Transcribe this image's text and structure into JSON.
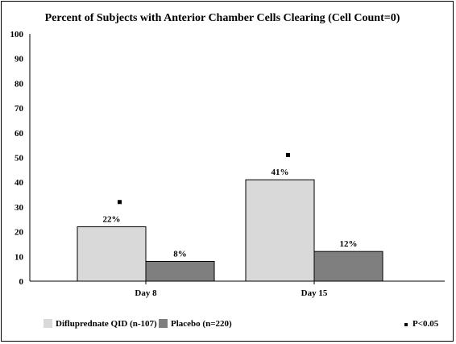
{
  "chart_data": {
    "type": "bar",
    "title": "Percent of Subjects with Anterior Chamber Cells Clearing (Cell Count=0)",
    "categories": [
      "Day  8",
      "Day  15"
    ],
    "series": [
      {
        "name": "Difluprednate  QID  (n-107)",
        "values": [
          22,
          41
        ],
        "labels": [
          "22%",
          "41%"
        ],
        "color": "#d9d9d9"
      },
      {
        "name": "Placebo   (n=220)",
        "values": [
          8,
          12
        ],
        "labels": [
          "8%",
          "12%"
        ],
        "color": "#7f7f7f"
      }
    ],
    "significance_markers": [
      {
        "category": "Day  8",
        "series": "Difluprednate  QID  (n-107)",
        "y": 32
      },
      {
        "category": "Day  15",
        "series": "Difluprednate  QID  (n-107)",
        "y": 51
      }
    ],
    "ylim": [
      0,
      100
    ],
    "yticks": [
      0,
      10,
      20,
      30,
      40,
      50,
      60,
      70,
      80,
      90,
      100
    ],
    "xlabel": "",
    "ylabel": "",
    "grid": false,
    "legend_position": "bottom-left",
    "note": "P<0.05",
    "note_marker": "■"
  }
}
